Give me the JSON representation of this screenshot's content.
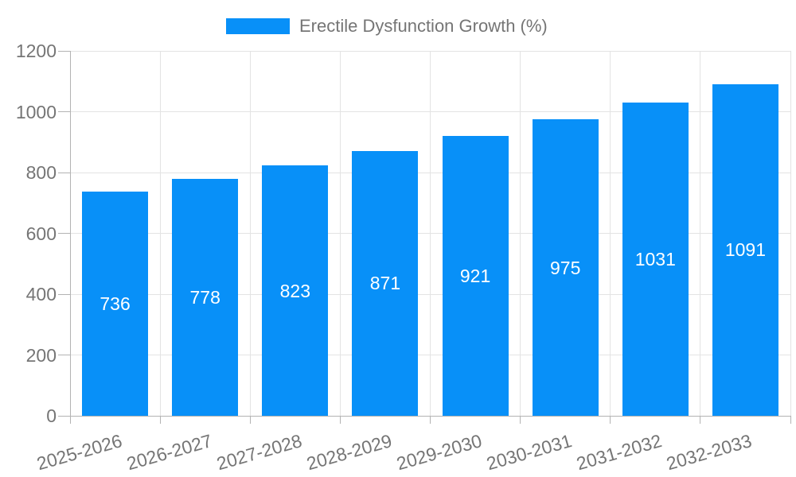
{
  "chart_data": {
    "type": "bar",
    "title": "",
    "series_name": "Erectile Dysfunction Growth (%)",
    "categories": [
      "2025-2026",
      "2026-2027",
      "2027-2028",
      "2028-2029",
      "2029-2030",
      "2030-2031",
      "2031-2032",
      "2032-2033"
    ],
    "values": [
      736,
      778,
      823,
      871,
      921,
      975,
      1031,
      1091
    ],
    "bar_value_labels": [
      "736",
      "778",
      "823",
      "871",
      "921",
      "975",
      "1031",
      "1091"
    ],
    "xlabel": "",
    "ylabel": "",
    "ylim": [
      0,
      1200
    ],
    "yticks": [
      0,
      200,
      400,
      600,
      800,
      1000,
      1200
    ],
    "grid": true,
    "legend_position": "top-center"
  },
  "legend": {
    "label": "Erectile Dysfunction Growth (%)"
  },
  "colors": {
    "bar": "#0890f8",
    "axis_text": "#757575",
    "grid_line": "#e3e3e3",
    "axis_line": "#b3b3b3",
    "bar_label_text": "#ffffff",
    "background": "#ffffff"
  }
}
